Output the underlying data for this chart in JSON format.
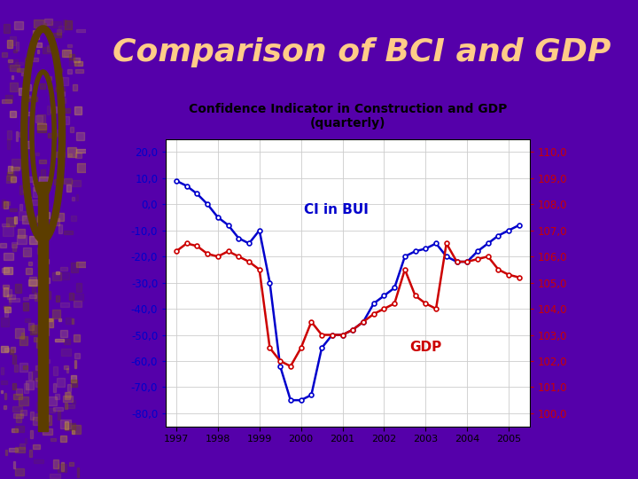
{
  "title": "Comparison of BCI and GDP",
  "chart_title": "Confidence Indicator in Construction and GDP\n(quarterly)",
  "background_color": "#5500aa",
  "chart_bg": "#ffffff",
  "title_color": "#ffcc88",
  "left_label_color": "#0000cc",
  "right_label_color": "#cc0000",
  "bci_color": "#0000cc",
  "gdp_color": "#cc0000",
  "bci_label": "CI in BUI",
  "gdp_label": "GDP",
  "left_yticks": [
    20,
    10,
    0,
    -10,
    -20,
    -30,
    -40,
    -50,
    -60,
    -70,
    -80
  ],
  "right_yticks": [
    110,
    109,
    108,
    107,
    106,
    105,
    104,
    103,
    102,
    101,
    100
  ],
  "left_ylim": [
    -85,
    25
  ],
  "right_ylim": [
    99.5,
    110.5
  ],
  "xtick_labels": [
    "1997",
    "1998",
    "1999",
    "2000",
    "2001",
    "2002",
    "2003",
    "2004",
    "2005"
  ],
  "bci_x": [
    1997.0,
    1997.25,
    1997.5,
    1997.75,
    1998.0,
    1998.25,
    1998.5,
    1998.75,
    1999.0,
    1999.25,
    1999.5,
    1999.75,
    2000.0,
    2000.25,
    2000.5,
    2000.75,
    2001.0,
    2001.25,
    2001.5,
    2001.75,
    2002.0,
    2002.25,
    2002.5,
    2002.75,
    2003.0,
    2003.25,
    2003.5,
    2003.75,
    2004.0,
    2004.25,
    2004.5,
    2004.75,
    2005.0,
    2005.25
  ],
  "bci_y": [
    9,
    7,
    4,
    0,
    -5,
    -8,
    -13,
    -15,
    -10,
    -30,
    -62,
    -75,
    -75,
    -73,
    -55,
    -50,
    -50,
    -48,
    -45,
    -38,
    -35,
    -32,
    -20,
    -18,
    -17,
    -15,
    -20,
    -22,
    -22,
    -18,
    -15,
    -12,
    -10,
    -8
  ],
  "gdp_x": [
    1997.0,
    1997.25,
    1997.5,
    1997.75,
    1998.0,
    1998.25,
    1998.5,
    1998.75,
    1999.0,
    1999.25,
    1999.5,
    1999.75,
    2000.0,
    2000.25,
    2000.5,
    2000.75,
    2001.0,
    2001.25,
    2001.5,
    2001.75,
    2002.0,
    2002.25,
    2002.5,
    2002.75,
    2003.0,
    2003.25,
    2003.5,
    2003.75,
    2004.0,
    2004.25,
    2004.5,
    2004.75,
    2005.0,
    2005.25
  ],
  "gdp_y": [
    106.2,
    106.5,
    106.4,
    106.1,
    106.0,
    106.2,
    106.0,
    105.8,
    105.5,
    102.5,
    102.0,
    101.8,
    102.5,
    103.5,
    103.0,
    103.0,
    103.0,
    103.2,
    103.5,
    103.8,
    104.0,
    104.2,
    105.5,
    104.5,
    104.2,
    104.0,
    106.5,
    105.8,
    105.8,
    105.9,
    106.0,
    105.5,
    105.3,
    105.2
  ],
  "key_color": "#b8860b",
  "key_dark": "#5c3d00",
  "key_stripe": "#d4a017"
}
